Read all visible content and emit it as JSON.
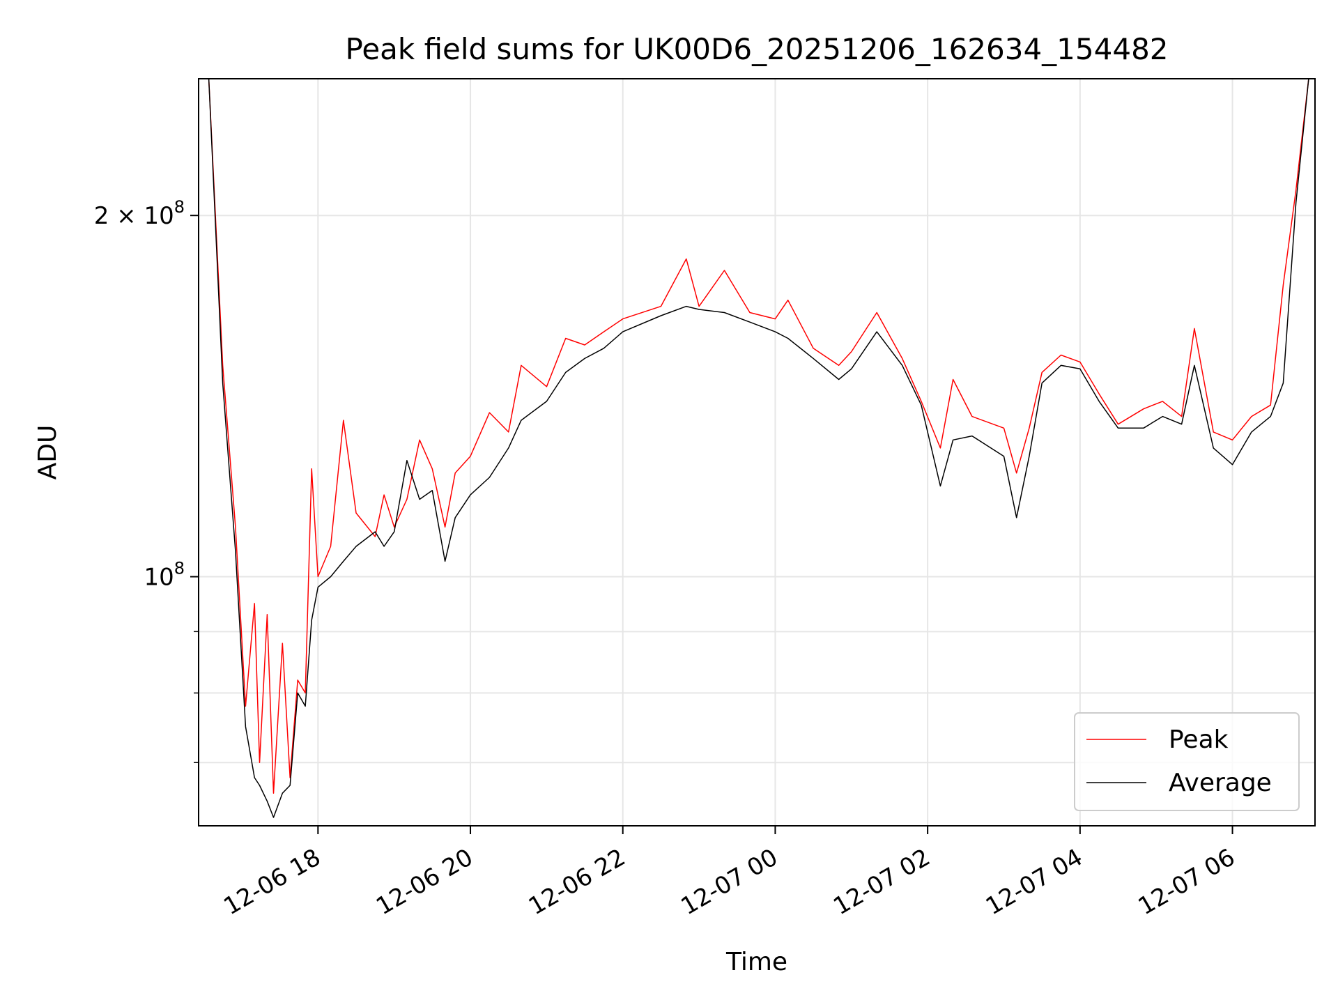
{
  "chart_data": {
    "type": "line",
    "title": "Peak field sums for UK00D6_20251206_162634_154482",
    "xlabel": "Time",
    "ylabel": "ADU",
    "y_scale": "log",
    "ylim": [
      62000000,
      260000000
    ],
    "xlim": [
      "2025-12-06 16:26",
      "2025-12-07 07:05"
    ],
    "grid": true,
    "legend_position": "lower right",
    "x_ticks": [
      {
        "label": "12-06 18",
        "value": "2025-12-06 18:00"
      },
      {
        "label": "12-06 20",
        "value": "2025-12-06 20:00"
      },
      {
        "label": "12-06 22",
        "value": "2025-12-06 22:00"
      },
      {
        "label": "12-07 00",
        "value": "2025-12-07 00:00"
      },
      {
        "label": "12-07 02",
        "value": "2025-12-07 02:00"
      },
      {
        "label": "12-07 04",
        "value": "2025-12-07 04:00"
      },
      {
        "label": "12-07 06",
        "value": "2025-12-07 06:00"
      }
    ],
    "y_ticks": [
      {
        "label": "10^8",
        "value": 100000000
      },
      {
        "label": "2×10^8",
        "value": 200000000
      }
    ],
    "y_minor_ticks": [
      70000000,
      80000000,
      90000000
    ],
    "series": [
      {
        "name": "Peak",
        "color": "#ff0000",
        "points": [
          [
            "2025-12-06 16:34",
            260000000
          ],
          [
            "2025-12-06 16:45",
            150000000
          ],
          [
            "2025-12-06 16:55",
            110000000
          ],
          [
            "2025-12-06 17:03",
            78000000
          ],
          [
            "2025-12-06 17:10",
            95000000
          ],
          [
            "2025-12-06 17:14",
            70000000
          ],
          [
            "2025-12-06 17:20",
            93000000
          ],
          [
            "2025-12-06 17:25",
            66000000
          ],
          [
            "2025-12-06 17:32",
            88000000
          ],
          [
            "2025-12-06 17:38",
            68000000
          ],
          [
            "2025-12-06 17:44",
            82000000
          ],
          [
            "2025-12-06 17:50",
            80000000
          ],
          [
            "2025-12-06 17:55",
            123000000
          ],
          [
            "2025-12-06 18:00",
            100000000
          ],
          [
            "2025-12-06 18:10",
            106000000
          ],
          [
            "2025-12-06 18:20",
            135000000
          ],
          [
            "2025-12-06 18:30",
            113000000
          ],
          [
            "2025-12-06 18:45",
            108000000
          ],
          [
            "2025-12-06 18:52",
            117000000
          ],
          [
            "2025-12-06 19:00",
            110000000
          ],
          [
            "2025-12-06 19:10",
            116000000
          ],
          [
            "2025-12-06 19:20",
            130000000
          ],
          [
            "2025-12-06 19:30",
            123000000
          ],
          [
            "2025-12-06 19:40",
            110000000
          ],
          [
            "2025-12-06 19:48",
            122000000
          ],
          [
            "2025-12-06 20:00",
            126000000
          ],
          [
            "2025-12-06 20:15",
            137000000
          ],
          [
            "2025-12-06 20:30",
            132000000
          ],
          [
            "2025-12-06 20:40",
            150000000
          ],
          [
            "2025-12-06 21:00",
            144000000
          ],
          [
            "2025-12-06 21:15",
            158000000
          ],
          [
            "2025-12-06 21:30",
            156000000
          ],
          [
            "2025-12-06 21:45",
            160000000
          ],
          [
            "2025-12-06 22:00",
            164000000
          ],
          [
            "2025-12-06 22:30",
            168000000
          ],
          [
            "2025-12-06 22:50",
            184000000
          ],
          [
            "2025-12-06 23:00",
            168000000
          ],
          [
            "2025-12-06 23:20",
            180000000
          ],
          [
            "2025-12-06 23:40",
            166000000
          ],
          [
            "2025-12-07 00:00",
            164000000
          ],
          [
            "2025-12-07 00:10",
            170000000
          ],
          [
            "2025-12-07 00:30",
            155000000
          ],
          [
            "2025-12-07 00:50",
            150000000
          ],
          [
            "2025-12-07 01:00",
            154000000
          ],
          [
            "2025-12-07 01:20",
            166000000
          ],
          [
            "2025-12-07 01:40",
            152000000
          ],
          [
            "2025-12-07 01:55",
            140000000
          ],
          [
            "2025-12-07 02:10",
            128000000
          ],
          [
            "2025-12-07 02:20",
            146000000
          ],
          [
            "2025-12-07 02:35",
            136000000
          ],
          [
            "2025-12-07 03:00",
            133000000
          ],
          [
            "2025-12-07 03:10",
            122000000
          ],
          [
            "2025-12-07 03:20",
            133000000
          ],
          [
            "2025-12-07 03:30",
            148000000
          ],
          [
            "2025-12-07 03:45",
            153000000
          ],
          [
            "2025-12-07 04:00",
            151000000
          ],
          [
            "2025-12-07 04:15",
            142000000
          ],
          [
            "2025-12-07 04:30",
            134000000
          ],
          [
            "2025-12-07 04:50",
            138000000
          ],
          [
            "2025-12-07 05:05",
            140000000
          ],
          [
            "2025-12-07 05:20",
            136000000
          ],
          [
            "2025-12-07 05:30",
            161000000
          ],
          [
            "2025-12-07 05:45",
            132000000
          ],
          [
            "2025-12-07 06:00",
            130000000
          ],
          [
            "2025-12-07 06:15",
            136000000
          ],
          [
            "2025-12-07 06:30",
            139000000
          ],
          [
            "2025-12-07 06:40",
            175000000
          ],
          [
            "2025-12-07 06:50",
            210000000
          ],
          [
            "2025-12-07 07:00",
            260000000
          ]
        ]
      },
      {
        "name": "Average",
        "color": "#000000",
        "points": [
          [
            "2025-12-06 16:34",
            260000000
          ],
          [
            "2025-12-06 16:45",
            145000000
          ],
          [
            "2025-12-06 16:55",
            105000000
          ],
          [
            "2025-12-06 17:03",
            75000000
          ],
          [
            "2025-12-06 17:10",
            68000000
          ],
          [
            "2025-12-06 17:14",
            67000000
          ],
          [
            "2025-12-06 17:20",
            65000000
          ],
          [
            "2025-12-06 17:25",
            63000000
          ],
          [
            "2025-12-06 17:32",
            66000000
          ],
          [
            "2025-12-06 17:38",
            67000000
          ],
          [
            "2025-12-06 17:44",
            80000000
          ],
          [
            "2025-12-06 17:50",
            78000000
          ],
          [
            "2025-12-06 17:55",
            92000000
          ],
          [
            "2025-12-06 18:00",
            98000000
          ],
          [
            "2025-12-06 18:10",
            100000000
          ],
          [
            "2025-12-06 18:20",
            103000000
          ],
          [
            "2025-12-06 18:30",
            106000000
          ],
          [
            "2025-12-06 18:45",
            109000000
          ],
          [
            "2025-12-06 18:52",
            106000000
          ],
          [
            "2025-12-06 19:00",
            109000000
          ],
          [
            "2025-12-06 19:10",
            125000000
          ],
          [
            "2025-12-06 19:20",
            116000000
          ],
          [
            "2025-12-06 19:30",
            118000000
          ],
          [
            "2025-12-06 19:40",
            103000000
          ],
          [
            "2025-12-06 19:48",
            112000000
          ],
          [
            "2025-12-06 20:00",
            117000000
          ],
          [
            "2025-12-06 20:15",
            121000000
          ],
          [
            "2025-12-06 20:30",
            128000000
          ],
          [
            "2025-12-06 20:40",
            135000000
          ],
          [
            "2025-12-06 21:00",
            140000000
          ],
          [
            "2025-12-06 21:15",
            148000000
          ],
          [
            "2025-12-06 21:30",
            152000000
          ],
          [
            "2025-12-06 21:45",
            155000000
          ],
          [
            "2025-12-06 22:00",
            160000000
          ],
          [
            "2025-12-06 22:30",
            165000000
          ],
          [
            "2025-12-06 22:50",
            168000000
          ],
          [
            "2025-12-06 23:00",
            167000000
          ],
          [
            "2025-12-06 23:20",
            166000000
          ],
          [
            "2025-12-06 23:40",
            163000000
          ],
          [
            "2025-12-07 00:00",
            160000000
          ],
          [
            "2025-12-07 00:10",
            158000000
          ],
          [
            "2025-12-07 00:30",
            152000000
          ],
          [
            "2025-12-07 00:50",
            146000000
          ],
          [
            "2025-12-07 01:00",
            149000000
          ],
          [
            "2025-12-07 01:20",
            160000000
          ],
          [
            "2025-12-07 01:40",
            150000000
          ],
          [
            "2025-12-07 01:55",
            139000000
          ],
          [
            "2025-12-07 02:10",
            119000000
          ],
          [
            "2025-12-07 02:20",
            130000000
          ],
          [
            "2025-12-07 02:35",
            131000000
          ],
          [
            "2025-12-07 03:00",
            126000000
          ],
          [
            "2025-12-07 03:10",
            112000000
          ],
          [
            "2025-12-07 03:20",
            126000000
          ],
          [
            "2025-12-07 03:30",
            145000000
          ],
          [
            "2025-12-07 03:45",
            150000000
          ],
          [
            "2025-12-07 04:00",
            149000000
          ],
          [
            "2025-12-07 04:15",
            140000000
          ],
          [
            "2025-12-07 04:30",
            133000000
          ],
          [
            "2025-12-07 04:50",
            133000000
          ],
          [
            "2025-12-07 05:05",
            136000000
          ],
          [
            "2025-12-07 05:20",
            134000000
          ],
          [
            "2025-12-07 05:30",
            150000000
          ],
          [
            "2025-12-07 05:45",
            128000000
          ],
          [
            "2025-12-07 06:00",
            124000000
          ],
          [
            "2025-12-07 06:15",
            132000000
          ],
          [
            "2025-12-07 06:30",
            136000000
          ],
          [
            "2025-12-07 06:40",
            145000000
          ],
          [
            "2025-12-07 06:50",
            205000000
          ],
          [
            "2025-12-07 07:00",
            260000000
          ]
        ]
      }
    ]
  }
}
